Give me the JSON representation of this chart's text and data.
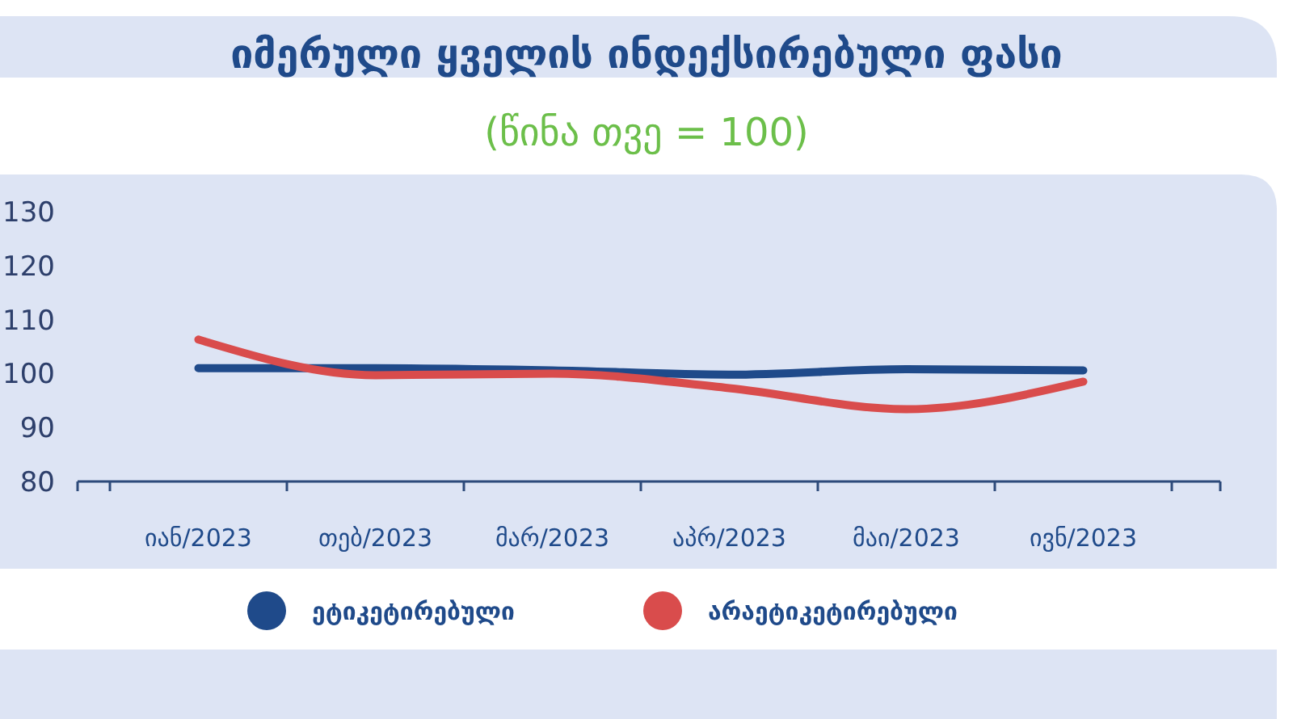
{
  "chart_data": {
    "type": "line",
    "title": "იმერული ყველის ინდექსირებული ფასი",
    "subtitle": "(წინა თვე = 100)",
    "categories": [
      "იან/2023",
      "თებ/2023",
      "მარ/2023",
      "აპრ/2023",
      "მაი/2023",
      "ივნ/2023"
    ],
    "series": [
      {
        "name": "ეტიკეტირებული",
        "color": "#1f4a8a",
        "values": [
          101,
          101,
          100.6,
          99.8,
          100.8,
          100.6
        ]
      },
      {
        "name": "არაეტიკეტირებული",
        "color": "#d94c4c",
        "values": [
          106.3,
          99.7,
          100,
          97.3,
          93.4,
          98.5
        ]
      }
    ],
    "ylim": [
      80,
      130
    ],
    "yticks": [
      80,
      90,
      100,
      110,
      120,
      130
    ],
    "grid": false,
    "legend": "bottom"
  }
}
